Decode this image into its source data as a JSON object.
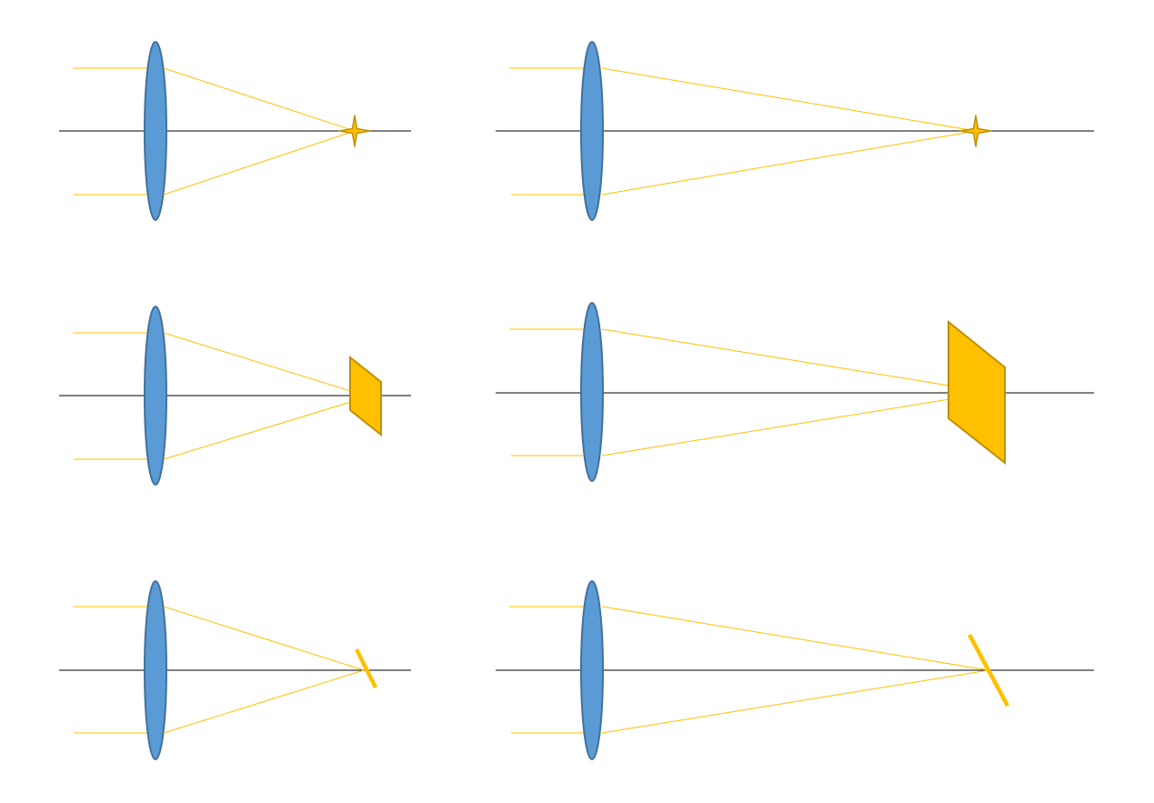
{
  "colors": {
    "lens_fill": "#5B9BD5",
    "lens_stroke": "#41719C",
    "ray": "#FFC000",
    "axis": "#000000",
    "object_fill": "#FFC000",
    "object_stroke": "#BF9000"
  },
  "panels": [
    {
      "id": "row1-short-focal",
      "object": "point-source-star"
    },
    {
      "id": "row1-long-focal",
      "object": "point-source-star"
    },
    {
      "id": "row2-short-focal",
      "object": "tilted-plane-small"
    },
    {
      "id": "row2-long-focal",
      "object": "tilted-plane-large"
    },
    {
      "id": "row3-short-focal",
      "object": "tilted-line-short"
    },
    {
      "id": "row3-long-focal",
      "object": "tilted-line-long"
    }
  ]
}
